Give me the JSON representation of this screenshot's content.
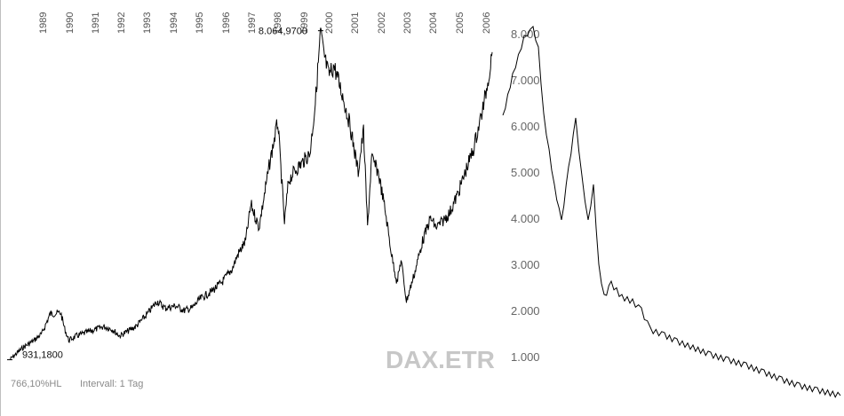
{
  "chart_data": {
    "type": "line",
    "title": "",
    "xlabel": "",
    "ylabel": "",
    "x_tick_labels": [
      "1989",
      "1990",
      "1991",
      "1992",
      "1993",
      "1994",
      "1995",
      "1996",
      "1997",
      "1998",
      "1999",
      "2000",
      "2001",
      "2002",
      "2003",
      "2004",
      "2005",
      "2006"
    ],
    "y_tick_labels": [
      "1.000",
      "2.000",
      "3.000",
      "4.000",
      "5.000",
      "6.000",
      "7.000",
      "8.000"
    ],
    "y_ticks": [
      1000,
      2000,
      3000,
      4000,
      5000,
      6000,
      7000,
      8000
    ],
    "ylim": [
      500,
      8500
    ],
    "xlim": [
      1988.5,
      2006.5
    ],
    "grid": false,
    "series": [
      {
        "x": [
          1988.5,
          1989.0,
          1989.4,
          1989.7,
          1990.0,
          1990.4,
          1990.55,
          1990.7,
          1991.0,
          1991.5,
          1992.0,
          1992.3,
          1992.6,
          1992.9,
          1993.2,
          1993.6,
          1994.0,
          1994.3,
          1994.7,
          1995.0,
          1995.3,
          1995.6,
          1996.0,
          1996.4,
          1996.8,
          1997.0,
          1997.3,
          1997.5,
          1997.8,
          1998.0,
          1998.2,
          1998.5,
          1998.75,
          1998.9,
          1999.1,
          1999.4,
          1999.7,
          1999.9,
          2000.1,
          2000.2,
          2000.4,
          2000.6,
          2000.9,
          2001.2,
          2001.5,
          2001.7,
          2001.85,
          2002.0,
          2002.25,
          2002.5,
          2002.75,
          2002.95,
          2003.1,
          2003.3,
          2003.6,
          2003.9,
          2004.2,
          2004.4,
          2004.6,
          2004.9,
          2005.2,
          2005.5,
          2005.8,
          2006.0,
          2006.2,
          2006.4,
          2006.5
        ],
        "y": [
          931.18,
          1200,
          1350,
          1500,
          1920,
          1950,
          1600,
          1350,
          1450,
          1550,
          1650,
          1600,
          1450,
          1550,
          1650,
          1900,
          2200,
          2050,
          2100,
          2000,
          2050,
          2250,
          2400,
          2600,
          2900,
          3200,
          3500,
          4300,
          3800,
          4500,
          5200,
          6100,
          3900,
          4800,
          5000,
          5200,
          5400,
          6500,
          8064.97,
          7600,
          7100,
          7300,
          6700,
          6000,
          5000,
          5900,
          3800,
          5300,
          5000,
          4200,
          3200,
          2600,
          3100,
          2200,
          2800,
          3500,
          4000,
          3800,
          3900,
          4100,
          4500,
          5000,
          5500,
          6000,
          6500,
          7200,
          7600
        ]
      }
    ],
    "annotations": [
      {
        "text": "8.064,9700",
        "x": 2000.1,
        "y": 8064.97
      },
      {
        "text": "931,1800",
        "x": 1988.5,
        "y": 931.18
      }
    ]
  },
  "watermark": "DAX.ETR",
  "footer": {
    "hl": "766,10%HL",
    "interval": "Intervall: 1 Tag"
  }
}
